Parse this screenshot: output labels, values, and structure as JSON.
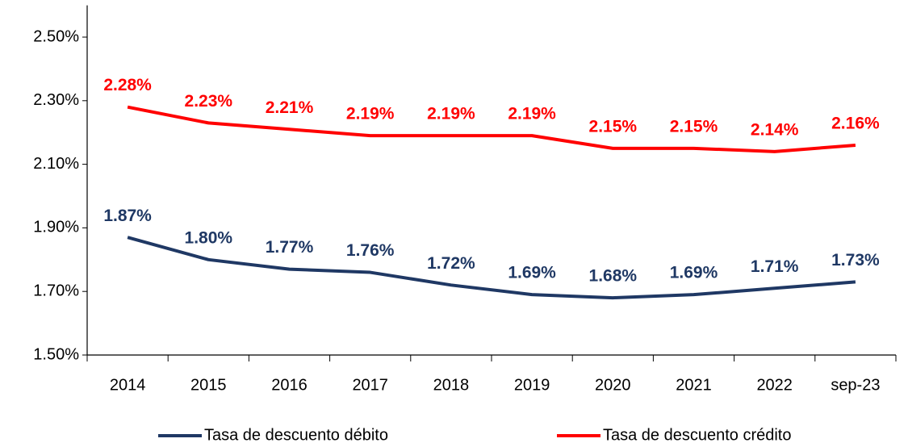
{
  "chart_data": {
    "type": "line",
    "categories": [
      "2014",
      "2015",
      "2016",
      "2017",
      "2018",
      "2019",
      "2020",
      "2021",
      "2022",
      "sep-23"
    ],
    "series": [
      {
        "name": "Tasa de descuento débito",
        "color": "#1f3864",
        "values": [
          1.87,
          1.8,
          1.77,
          1.76,
          1.72,
          1.69,
          1.68,
          1.69,
          1.71,
          1.73
        ],
        "value_labels": [
          "1.87%",
          "1.80%",
          "1.77%",
          "1.76%",
          "1.72%",
          "1.69%",
          "1.68%",
          "1.69%",
          "1.71%",
          "1.73%"
        ]
      },
      {
        "name": "Tasa de descuento crédito",
        "color": "#ff0000",
        "values": [
          2.28,
          2.23,
          2.21,
          2.19,
          2.19,
          2.19,
          2.15,
          2.15,
          2.14,
          2.16
        ],
        "value_labels": [
          "2.28%",
          "2.23%",
          "2.21%",
          "2.19%",
          "2.19%",
          "2.19%",
          "2.15%",
          "2.15%",
          "2.14%",
          "2.16%"
        ]
      }
    ],
    "ylim": [
      1.5,
      2.6
    ],
    "yticks": [
      {
        "value": 1.5,
        "label": "1.50%"
      },
      {
        "value": 1.7,
        "label": "1.70%"
      },
      {
        "value": 1.9,
        "label": "1.90%"
      },
      {
        "value": 2.1,
        "label": "2.10%"
      },
      {
        "value": 2.3,
        "label": "2.30%"
      },
      {
        "value": 2.5,
        "label": "2.50%"
      }
    ],
    "legend": "bottom"
  }
}
